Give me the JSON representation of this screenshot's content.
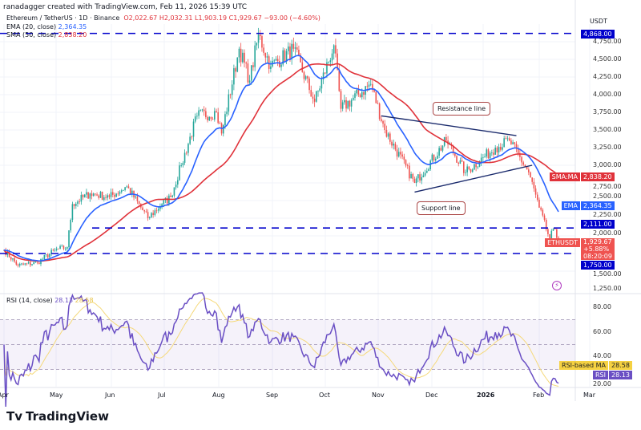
{
  "credit": "ranadagger created with TradingView.com, Feb 11, 2026 15:39 UTC",
  "legend": {
    "symbol": "Ethereum / TetherUS · 1D · Binance",
    "o": "O2,022.67",
    "h": "H2,032.31",
    "l": "L1,903.19",
    "c": "C1,929.67",
    "chg": "−93.00 (−4.60%)",
    "ema_label": "EMA (20, close)",
    "ema_val": "2,364.35",
    "sma_label": "SMA (50, close)",
    "sma_val": "2,838.20",
    "rsi_label": "RSI (14, close)",
    "rsi_val": "28.13",
    "rsi_ma_val": "28.58"
  },
  "axis": {
    "currency": "USDT",
    "price_ticks": [
      "4,750.00",
      "4,500.00",
      "4,250.00",
      "4,000.00",
      "3,750.00",
      "3,500.00",
      "3,250.00",
      "3,000.00",
      "2,750.00",
      "2,500.00",
      "2,250.00",
      "2,000.00",
      "1,500.00",
      "1,250.00"
    ],
    "rsi_ticks": [
      "80.00",
      "60.00",
      "40.00",
      "20.00"
    ],
    "time_ticks": [
      "Apr",
      "May",
      "Jun",
      "Jul",
      "Aug",
      "Sep",
      "Oct",
      "Nov",
      "Dec",
      "2026",
      "Feb",
      "Mar"
    ]
  },
  "tags": {
    "level_top": "4,868.00",
    "sma_name": "SMA:MA",
    "sma": "2,838.20",
    "ema_name": "EMA",
    "ema": "2,364.35",
    "level_mid": "2,111.00",
    "sym": "ETHUSDT",
    "price": "1,929.67",
    "pct": "+5.88%",
    "timer": "08:20:09",
    "level_low": "1,750.00",
    "rsi_ma_name": "RSI-based MA",
    "rsi_ma": "28.58",
    "rsi_name": "RSI",
    "rsi": "28.13"
  },
  "annotations": {
    "resistance": "Resistance line",
    "support": "Support line"
  },
  "logo": "TradingView",
  "colors": {
    "up": "#26a69a",
    "down": "#ef5350",
    "ema": "#2962ff",
    "sma": "#e0323a",
    "level": "#0000cc",
    "trend": "#1a2a6c",
    "rsi": "#6a4fc4",
    "rsi_ma": "#f5d97a"
  },
  "chart_data": {
    "type": "candlestick",
    "title": "Ethereum / TetherUS · 1D · Binance",
    "ylim": [
      1250,
      4900
    ],
    "approx_close_path": [
      [
        "2025-04-01",
        1800
      ],
      [
        "2025-04-09",
        1580
      ],
      [
        "2025-04-20",
        1620
      ],
      [
        "2025-04-30",
        1800
      ],
      [
        "2025-05-07",
        1840
      ],
      [
        "2025-05-10",
        2450
      ],
      [
        "2025-05-20",
        2600
      ],
      [
        "2025-05-31",
        2550
      ],
      [
        "2025-06-10",
        2700
      ],
      [
        "2025-06-22",
        2250
      ],
      [
        "2025-06-30",
        2450
      ],
      [
        "2025-07-05",
        2550
      ],
      [
        "2025-07-11",
        3000
      ],
      [
        "2025-07-20",
        3700
      ],
      [
        "2025-07-31",
        3750
      ],
      [
        "2025-08-03",
        3450
      ],
      [
        "2025-08-13",
        4650
      ],
      [
        "2025-08-19",
        4200
      ],
      [
        "2025-08-24",
        4850
      ],
      [
        "2025-08-31",
        4400
      ],
      [
        "2025-09-13",
        4650
      ],
      [
        "2025-09-25",
        3900
      ],
      [
        "2025-10-06",
        4700
      ],
      [
        "2025-10-10",
        3800
      ],
      [
        "2025-10-27",
        4150
      ],
      [
        "2025-11-04",
        3500
      ],
      [
        "2025-11-21",
        2750
      ],
      [
        "2025-12-09",
        3350
      ],
      [
        "2025-12-20",
        2900
      ],
      [
        "2026-01-06",
        3250
      ],
      [
        "2026-01-14",
        3350
      ],
      [
        "2026-01-25",
        2900
      ],
      [
        "2026-01-31",
        2400
      ],
      [
        "2026-02-06",
        1950
      ],
      [
        "2026-02-08",
        2100
      ],
      [
        "2026-02-11",
        1930
      ]
    ],
    "horizontal_levels": [
      4868,
      2111,
      1750
    ],
    "resistance_line": [
      [
        "2025-11-02",
        3700
      ],
      [
        "2026-01-18",
        3420
      ]
    ],
    "support_line": [
      [
        "2025-11-21",
        2620
      ],
      [
        "2026-01-27",
        3000
      ]
    ],
    "indicators": [
      "EMA 20",
      "SMA 50",
      "RSI 14",
      "RSI-based MA 14"
    ],
    "rsi_bands": [
      70,
      50,
      30
    ]
  }
}
